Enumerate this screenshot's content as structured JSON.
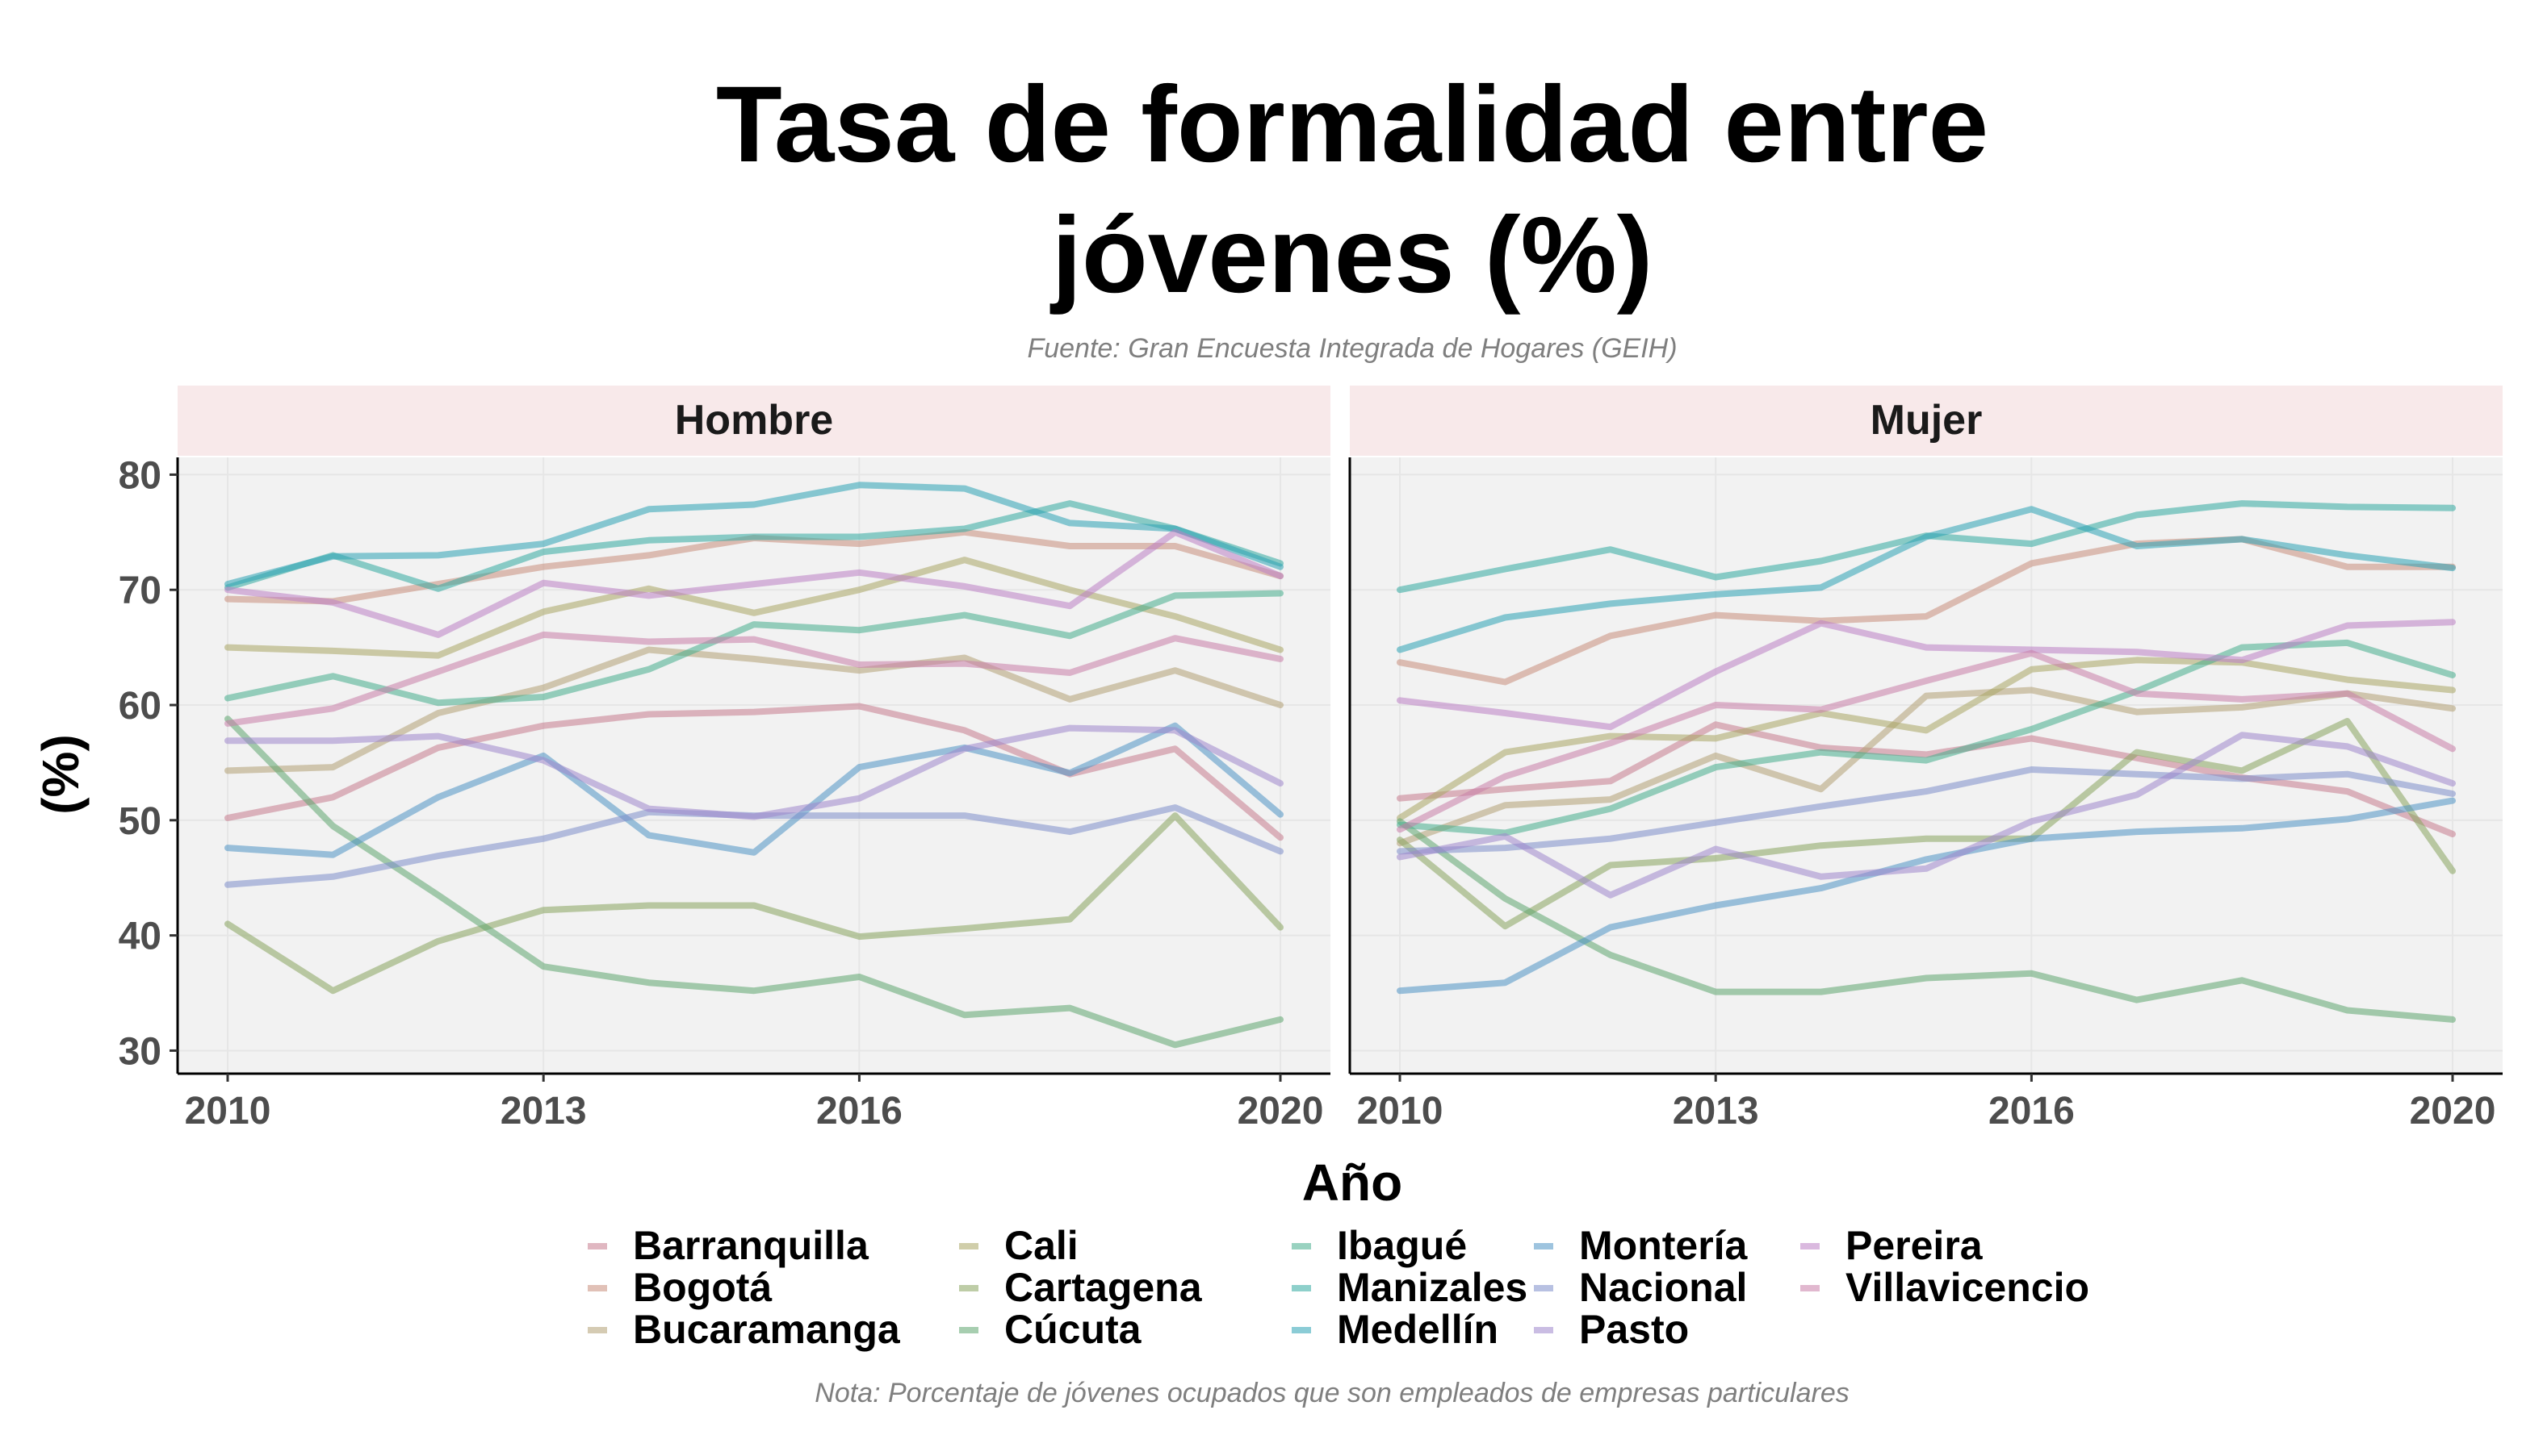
{
  "chart_data": {
    "type": "line",
    "title_lines": [
      "Tasa de formalidad entre",
      "jóvenes (%)"
    ],
    "subtitle": "Fuente: Gran Encuesta Integrada de Hogares (GEIH)",
    "caption": "Nota: Porcentaje de jóvenes ocupados que son empleados de empresas particulares",
    "xlabel": "Año",
    "ylabel": "(%)",
    "x": [
      2010,
      2011,
      2012,
      2013,
      2014,
      2015,
      2016,
      2017,
      2018,
      2019,
      2020
    ],
    "xticks": [
      2010,
      2013,
      2016,
      2020
    ],
    "xlim": [
      2010,
      2020
    ],
    "yticks": [
      30,
      40,
      50,
      60,
      70,
      80
    ],
    "ylim": [
      28,
      81.5
    ],
    "grid": true,
    "legend_position": "bottom",
    "series_style": {
      "opacity": 0.55
    },
    "panels": [
      {
        "label": "Hombre",
        "series": [
          {
            "name": "Barranquilla",
            "color": "#c77b8e",
            "values": [
              50.2,
              52.0,
              56.3,
              58.2,
              59.2,
              59.4,
              59.9,
              57.8,
              54.0,
              56.2,
              48.5
            ]
          },
          {
            "name": "Bogotá",
            "color": "#c98e7c",
            "values": [
              69.2,
              69.0,
              70.5,
              72.0,
              73.0,
              74.5,
              74.0,
              75.0,
              73.8,
              73.8,
              71.2
            ]
          },
          {
            "name": "Bucaramanga",
            "color": "#b3a074",
            "values": [
              54.3,
              54.6,
              59.3,
              61.5,
              64.8,
              64.0,
              63.0,
              64.1,
              60.5,
              63.0,
              60.0
            ]
          },
          {
            "name": "Cali",
            "color": "#a9a565",
            "values": [
              65.0,
              64.7,
              64.3,
              68.1,
              70.1,
              68.0,
              70.0,
              72.6,
              70.0,
              67.7,
              64.8
            ]
          },
          {
            "name": "Cartagena",
            "color": "#88a45e",
            "values": [
              41.0,
              35.2,
              39.5,
              42.2,
              42.6,
              42.6,
              39.9,
              40.6,
              41.4,
              50.4,
              40.7
            ]
          },
          {
            "name": "Cúcuta",
            "color": "#5fa56f",
            "values": [
              58.8,
              49.5,
              43.5,
              37.3,
              35.9,
              35.2,
              36.4,
              33.1,
              33.7,
              30.5,
              32.7
            ]
          },
          {
            "name": "Ibagué",
            "color": "#46ad8c",
            "values": [
              60.6,
              62.5,
              60.2,
              60.7,
              63.1,
              67.0,
              66.5,
              67.8,
              66.0,
              69.5,
              69.7
            ]
          },
          {
            "name": "Manizales",
            "color": "#31a9a1",
            "values": [
              70.2,
              73.0,
              70.1,
              73.3,
              74.3,
              74.6,
              74.6,
              75.3,
              77.5,
              75.3,
              72.3
            ]
          },
          {
            "name": "Medellín",
            "color": "#2ca3b5",
            "values": [
              70.5,
              72.9,
              73.0,
              74.0,
              77.0,
              77.4,
              79.1,
              78.8,
              75.8,
              75.3,
              72.0
            ]
          },
          {
            "name": "Montería",
            "color": "#4e93c4",
            "values": [
              47.6,
              47.0,
              52.0,
              55.6,
              48.7,
              47.2,
              54.6,
              56.3,
              54.1,
              58.2,
              50.5
            ]
          },
          {
            "name": "Nacional",
            "color": "#7d8ecb",
            "values": [
              44.4,
              45.1,
              46.9,
              48.4,
              50.7,
              50.4,
              50.4,
              50.4,
              49.0,
              51.1,
              47.3
            ]
          },
          {
            "name": "Pasto",
            "color": "#9f86cc",
            "values": [
              56.9,
              56.9,
              57.3,
              55.2,
              51.0,
              50.3,
              51.9,
              56.2,
              58.0,
              57.8,
              53.2
            ]
          },
          {
            "name": "Pereira",
            "color": "#bb7fc4",
            "values": [
              70.0,
              68.9,
              66.1,
              70.6,
              69.5,
              70.5,
              71.5,
              70.3,
              68.6,
              75.0,
              71.2
            ]
          },
          {
            "name": "Villavicencio",
            "color": "#c97da8",
            "values": [
              58.4,
              59.7,
              62.9,
              66.1,
              65.5,
              65.7,
              63.5,
              63.6,
              62.8,
              65.8,
              64.0
            ]
          }
        ]
      },
      {
        "label": "Mujer",
        "series": [
          {
            "name": "Barranquilla",
            "color": "#c77b8e",
            "values": [
              51.9,
              52.7,
              53.4,
              58.3,
              56.3,
              55.7,
              57.1,
              55.4,
              53.7,
              52.5,
              48.8
            ]
          },
          {
            "name": "Bogotá",
            "color": "#c98e7c",
            "values": [
              63.7,
              62.0,
              66.0,
              67.8,
              67.3,
              67.7,
              72.3,
              74.0,
              74.4,
              72.0,
              72.0
            ]
          },
          {
            "name": "Bucaramanga",
            "color": "#b3a074",
            "values": [
              48.0,
              51.3,
              51.8,
              55.6,
              52.7,
              60.8,
              61.3,
              59.4,
              59.8,
              61.0,
              59.7
            ]
          },
          {
            "name": "Cali",
            "color": "#a9a565",
            "values": [
              50.2,
              55.9,
              57.3,
              57.1,
              59.3,
              57.8,
              63.1,
              63.9,
              63.7,
              62.2,
              61.3
            ]
          },
          {
            "name": "Cartagena",
            "color": "#88a45e",
            "values": [
              48.3,
              40.8,
              46.1,
              46.7,
              47.8,
              48.4,
              48.4,
              55.9,
              54.3,
              58.6,
              45.6
            ]
          },
          {
            "name": "Cúcuta",
            "color": "#5fa56f",
            "values": [
              49.9,
              43.2,
              38.3,
              35.1,
              35.1,
              36.3,
              36.7,
              34.4,
              36.1,
              33.5,
              32.7
            ]
          },
          {
            "name": "Ibagué",
            "color": "#46ad8c",
            "values": [
              49.6,
              48.9,
              51.0,
              54.6,
              55.9,
              55.2,
              57.9,
              61.2,
              65.0,
              65.4,
              62.6
            ]
          },
          {
            "name": "Manizales",
            "color": "#31a9a1",
            "values": [
              70.0,
              71.8,
              73.5,
              71.1,
              72.5,
              74.7,
              74.0,
              76.5,
              77.5,
              77.2,
              77.1
            ]
          },
          {
            "name": "Medellín",
            "color": "#2ca3b5",
            "values": [
              64.8,
              67.6,
              68.8,
              69.6,
              70.2,
              74.6,
              77.0,
              73.8,
              74.4,
              73.0,
              71.9
            ]
          },
          {
            "name": "Montería",
            "color": "#4e93c4",
            "values": [
              35.2,
              35.9,
              40.7,
              42.6,
              44.1,
              46.6,
              48.4,
              49.0,
              49.3,
              50.1,
              51.7
            ]
          },
          {
            "name": "Nacional",
            "color": "#7d8ecb",
            "values": [
              47.3,
              47.6,
              48.4,
              49.8,
              51.2,
              52.5,
              54.4,
              54.0,
              53.6,
              54.0,
              52.3
            ]
          },
          {
            "name": "Pasto",
            "color": "#9f86cc",
            "values": [
              46.8,
              48.6,
              43.5,
              47.5,
              45.1,
              45.8,
              49.9,
              52.2,
              57.4,
              56.4,
              53.2
            ]
          },
          {
            "name": "Pereira",
            "color": "#bb7fc4",
            "values": [
              60.4,
              59.3,
              58.1,
              62.9,
              67.1,
              65.0,
              64.8,
              64.6,
              63.9,
              66.9,
              67.2
            ]
          },
          {
            "name": "Villavicencio",
            "color": "#c97da8",
            "values": [
              49.2,
              53.8,
              56.7,
              60.0,
              59.6,
              62.1,
              64.5,
              61.0,
              60.5,
              61.0,
              56.2
            ]
          }
        ]
      }
    ],
    "legend_columns": [
      [
        "Barranquilla",
        "Bogotá",
        "Bucaramanga"
      ],
      [
        "Cali",
        "Cartagena",
        "Cúcuta"
      ],
      [
        "Ibagué",
        "Manizales",
        "Medellín"
      ],
      [
        "Montería",
        "Nacional",
        "Pasto"
      ],
      [
        "Pereira",
        "Villavicencio"
      ]
    ]
  }
}
